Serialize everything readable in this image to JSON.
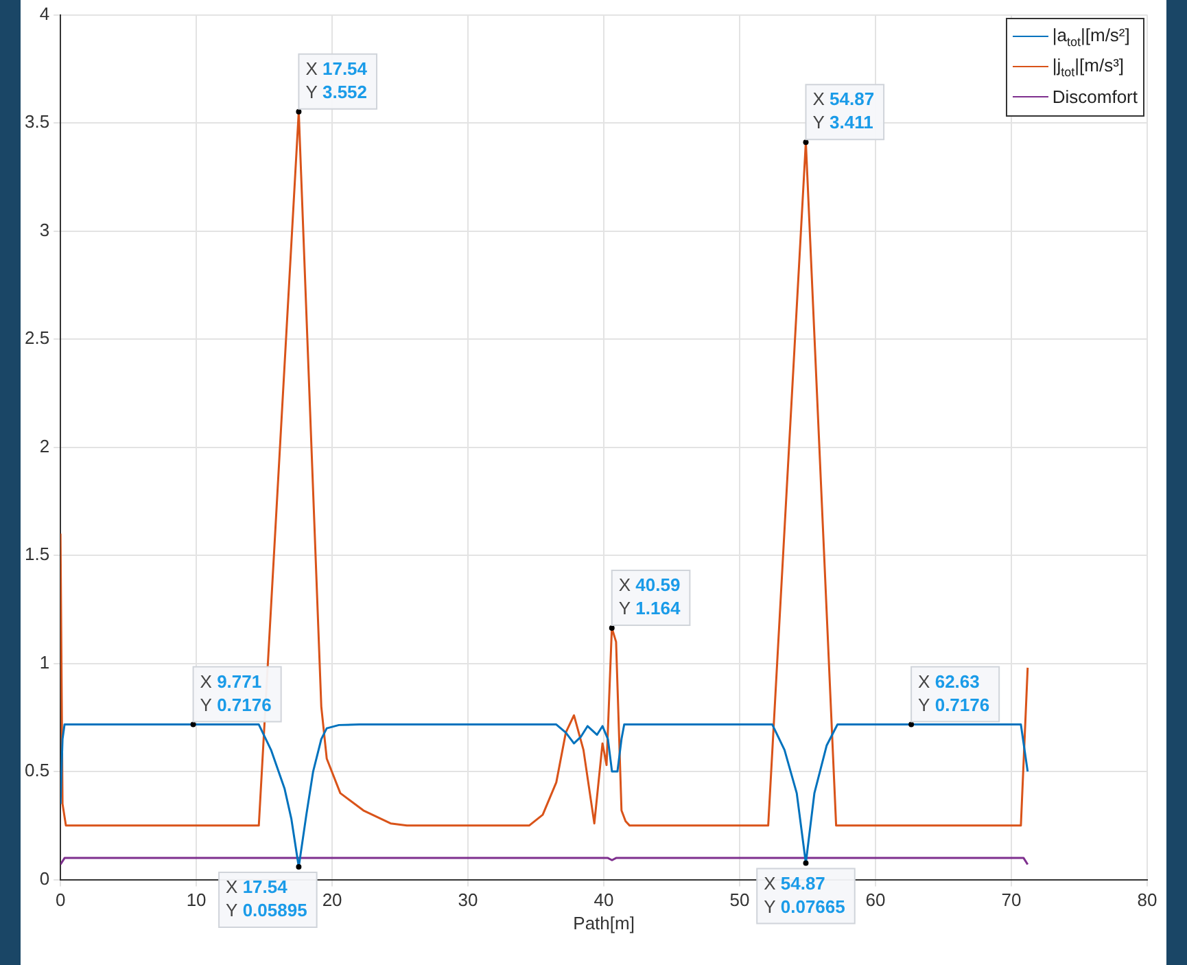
{
  "chart_data": {
    "type": "line",
    "xlabel": "Path[m]",
    "xlim": [
      0,
      80
    ],
    "xticks": [
      0,
      10,
      20,
      30,
      40,
      50,
      60,
      70,
      80
    ],
    "ylim": [
      0,
      4
    ],
    "yticks": [
      0,
      0.5,
      1,
      1.5,
      2,
      2.5,
      3,
      3.5,
      4
    ],
    "grid": true,
    "legend": "top right",
    "marker": "none",
    "line_style": "solid",
    "series": [
      {
        "name": "|a$_{tot}$|[m/s²]",
        "color": "#0072bd",
        "x": [
          0,
          0.15,
          0.3,
          9.771,
          14.6,
          15.5,
          16.5,
          17.0,
          17.54,
          18.1,
          18.6,
          19.2,
          19.6,
          20.5,
          22,
          36.5,
          37.2,
          37.8,
          38.3,
          38.8,
          39.5,
          39.9,
          40.3,
          40.6,
          41.0,
          41.3,
          41.5,
          52.4,
          53.3,
          54.2,
          54.87,
          55.5,
          56.4,
          57.2,
          62.63,
          70.7,
          71.2
        ],
        "values": [
          0.35,
          0.65,
          0.7176,
          0.7176,
          0.7176,
          0.6,
          0.42,
          0.28,
          0.05895,
          0.3,
          0.5,
          0.65,
          0.7,
          0.715,
          0.7176,
          0.7176,
          0.68,
          0.63,
          0.66,
          0.71,
          0.67,
          0.71,
          0.65,
          0.5,
          0.5,
          0.65,
          0.7176,
          0.7176,
          0.6,
          0.4,
          0.07665,
          0.4,
          0.62,
          0.7176,
          0.7176,
          0.7176,
          0.5
        ]
      },
      {
        "name": "|j$_{tot}$|[m/s³]",
        "color": "#d95319",
        "x": [
          0,
          0.15,
          0.4,
          14.6,
          17.54,
          19.2,
          19.6,
          20.6,
          22.3,
          24.3,
          25.5,
          34.5,
          35.5,
          36.5,
          37.2,
          37.8,
          38.5,
          39.3,
          39.9,
          40.2,
          40.59,
          40.9,
          41.3,
          41.6,
          41.9,
          52.1,
          54.87,
          57.1,
          70.7,
          71.2
        ],
        "values": [
          1.6,
          0.35,
          0.25,
          0.25,
          3.552,
          0.8,
          0.56,
          0.4,
          0.32,
          0.26,
          0.25,
          0.25,
          0.3,
          0.45,
          0.68,
          0.76,
          0.6,
          0.26,
          0.63,
          0.53,
          1.164,
          1.1,
          0.32,
          0.27,
          0.25,
          0.25,
          3.411,
          0.25,
          0.25,
          0.98
        ]
      },
      {
        "name": "Discomfort",
        "color": "#7e2f8e",
        "x": [
          0,
          0.3,
          40.3,
          40.6,
          40.9,
          70.9,
          71.2
        ],
        "values": [
          0.07,
          0.1,
          0.1,
          0.09,
          0.1,
          0.1,
          0.07
        ]
      }
    ],
    "annotations": [
      {
        "text": "X 17.54\nY 3.552",
        "x": 17.54,
        "y": 3.552
      },
      {
        "text": "X 54.87\nY 3.411",
        "x": 54.87,
        "y": 3.411
      },
      {
        "text": "X 40.59\nY 1.164",
        "x": 40.59,
        "y": 1.164
      },
      {
        "text": "X 9.771\nY 0.7176",
        "x": 9.771,
        "y": 0.7176
      },
      {
        "text": "X 62.63\nY 0.7176",
        "x": 62.63,
        "y": 0.7176
      },
      {
        "text": "X 17.54\nY 0.05895",
        "x": 17.54,
        "y": 0.05895
      },
      {
        "text": "X 54.87\nY 0.07665",
        "x": 54.87,
        "y": 0.07665
      }
    ]
  }
}
